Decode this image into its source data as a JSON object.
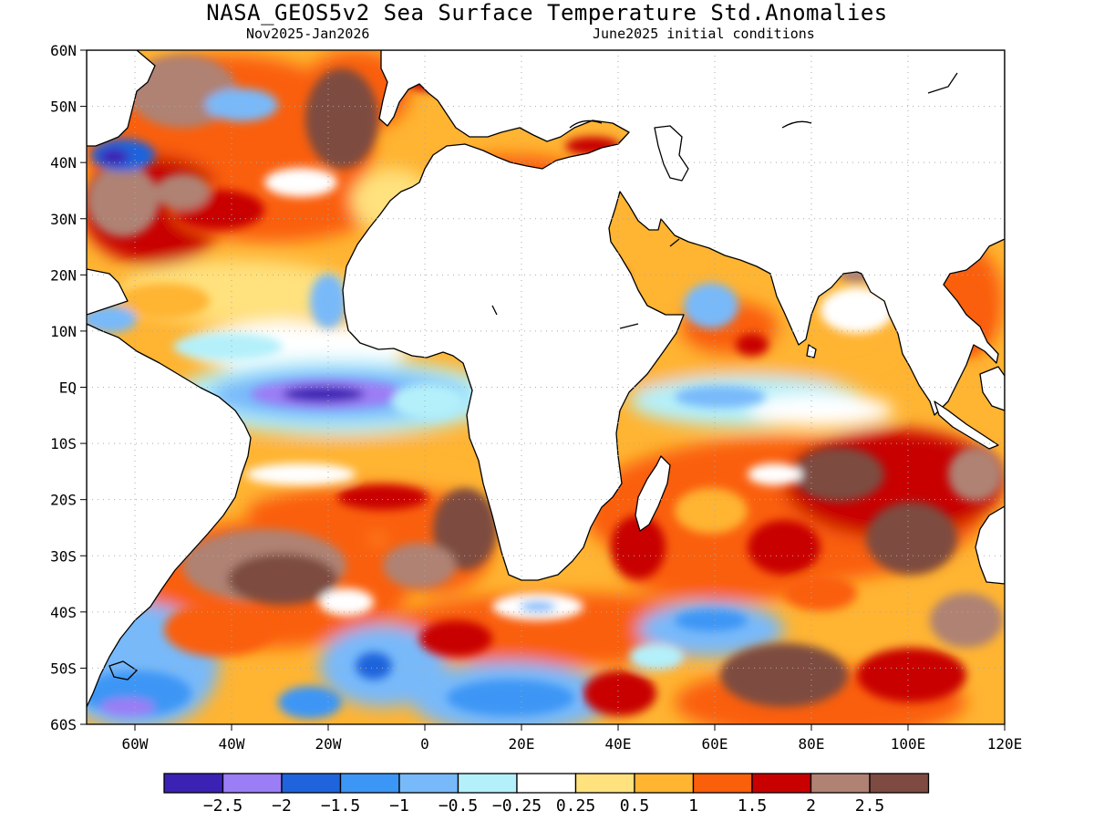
{
  "header": {
    "title": "NASA_GEOS5v2 Sea Surface Temperature Std.Anomalies",
    "period": "Nov2025-Jan2026",
    "init": "June2025 initial conditions"
  },
  "axes": {
    "x_ticks": [
      "60W",
      "40W",
      "20W",
      "0",
      "20E",
      "40E",
      "60E",
      "80E",
      "100E",
      "120E"
    ],
    "y_ticks": [
      "60N",
      "50N",
      "40N",
      "30N",
      "20N",
      "10N",
      "EQ",
      "10S",
      "20S",
      "30S",
      "40S",
      "50S",
      "60S"
    ]
  },
  "colorbar": {
    "colors": [
      "#3c22b4",
      "#9b7df5",
      "#1f64dc",
      "#3c96f5",
      "#78b9fa",
      "#b4f0fa",
      "#ffffff",
      "#ffe17d",
      "#ffb432",
      "#fa5f0a",
      "#c80000",
      "#af8273",
      "#7d4b41"
    ],
    "labels": [
      "-2.5",
      "-2",
      "-1.5",
      "-1",
      "-0.5",
      "-0.25",
      "0.25",
      "0.5",
      "1",
      "1.5",
      "2",
      "2.5"
    ]
  },
  "map_data": {
    "variable": "Sea Surface Temperature Std.Anomalies",
    "lon_range": [
      -70,
      120
    ],
    "lat_range": [
      -60,
      60
    ],
    "features": [
      {
        "name": "equatorial Atlantic cold tongue",
        "lon": -15,
        "lat": -1,
        "value": -2.2
      },
      {
        "name": "south Atlantic warm anomalies",
        "lon": -25,
        "lat": -38,
        "value": 2.6
      },
      {
        "name": "southern Indian Ocean warm anomalies",
        "lon": 85,
        "lat": -25,
        "value": 2.4
      },
      {
        "name": "Southern Ocean cool anomalies",
        "lon": 20,
        "lat": -53,
        "value": -1.2
      },
      {
        "name": "north Atlantic mixed anomalies",
        "lon": -30,
        "lat": 45,
        "value": 1.5
      },
      {
        "name": "equatorial Indian Ocean cool anomalies",
        "lon": 70,
        "lat": -2,
        "value": -0.5
      }
    ]
  }
}
